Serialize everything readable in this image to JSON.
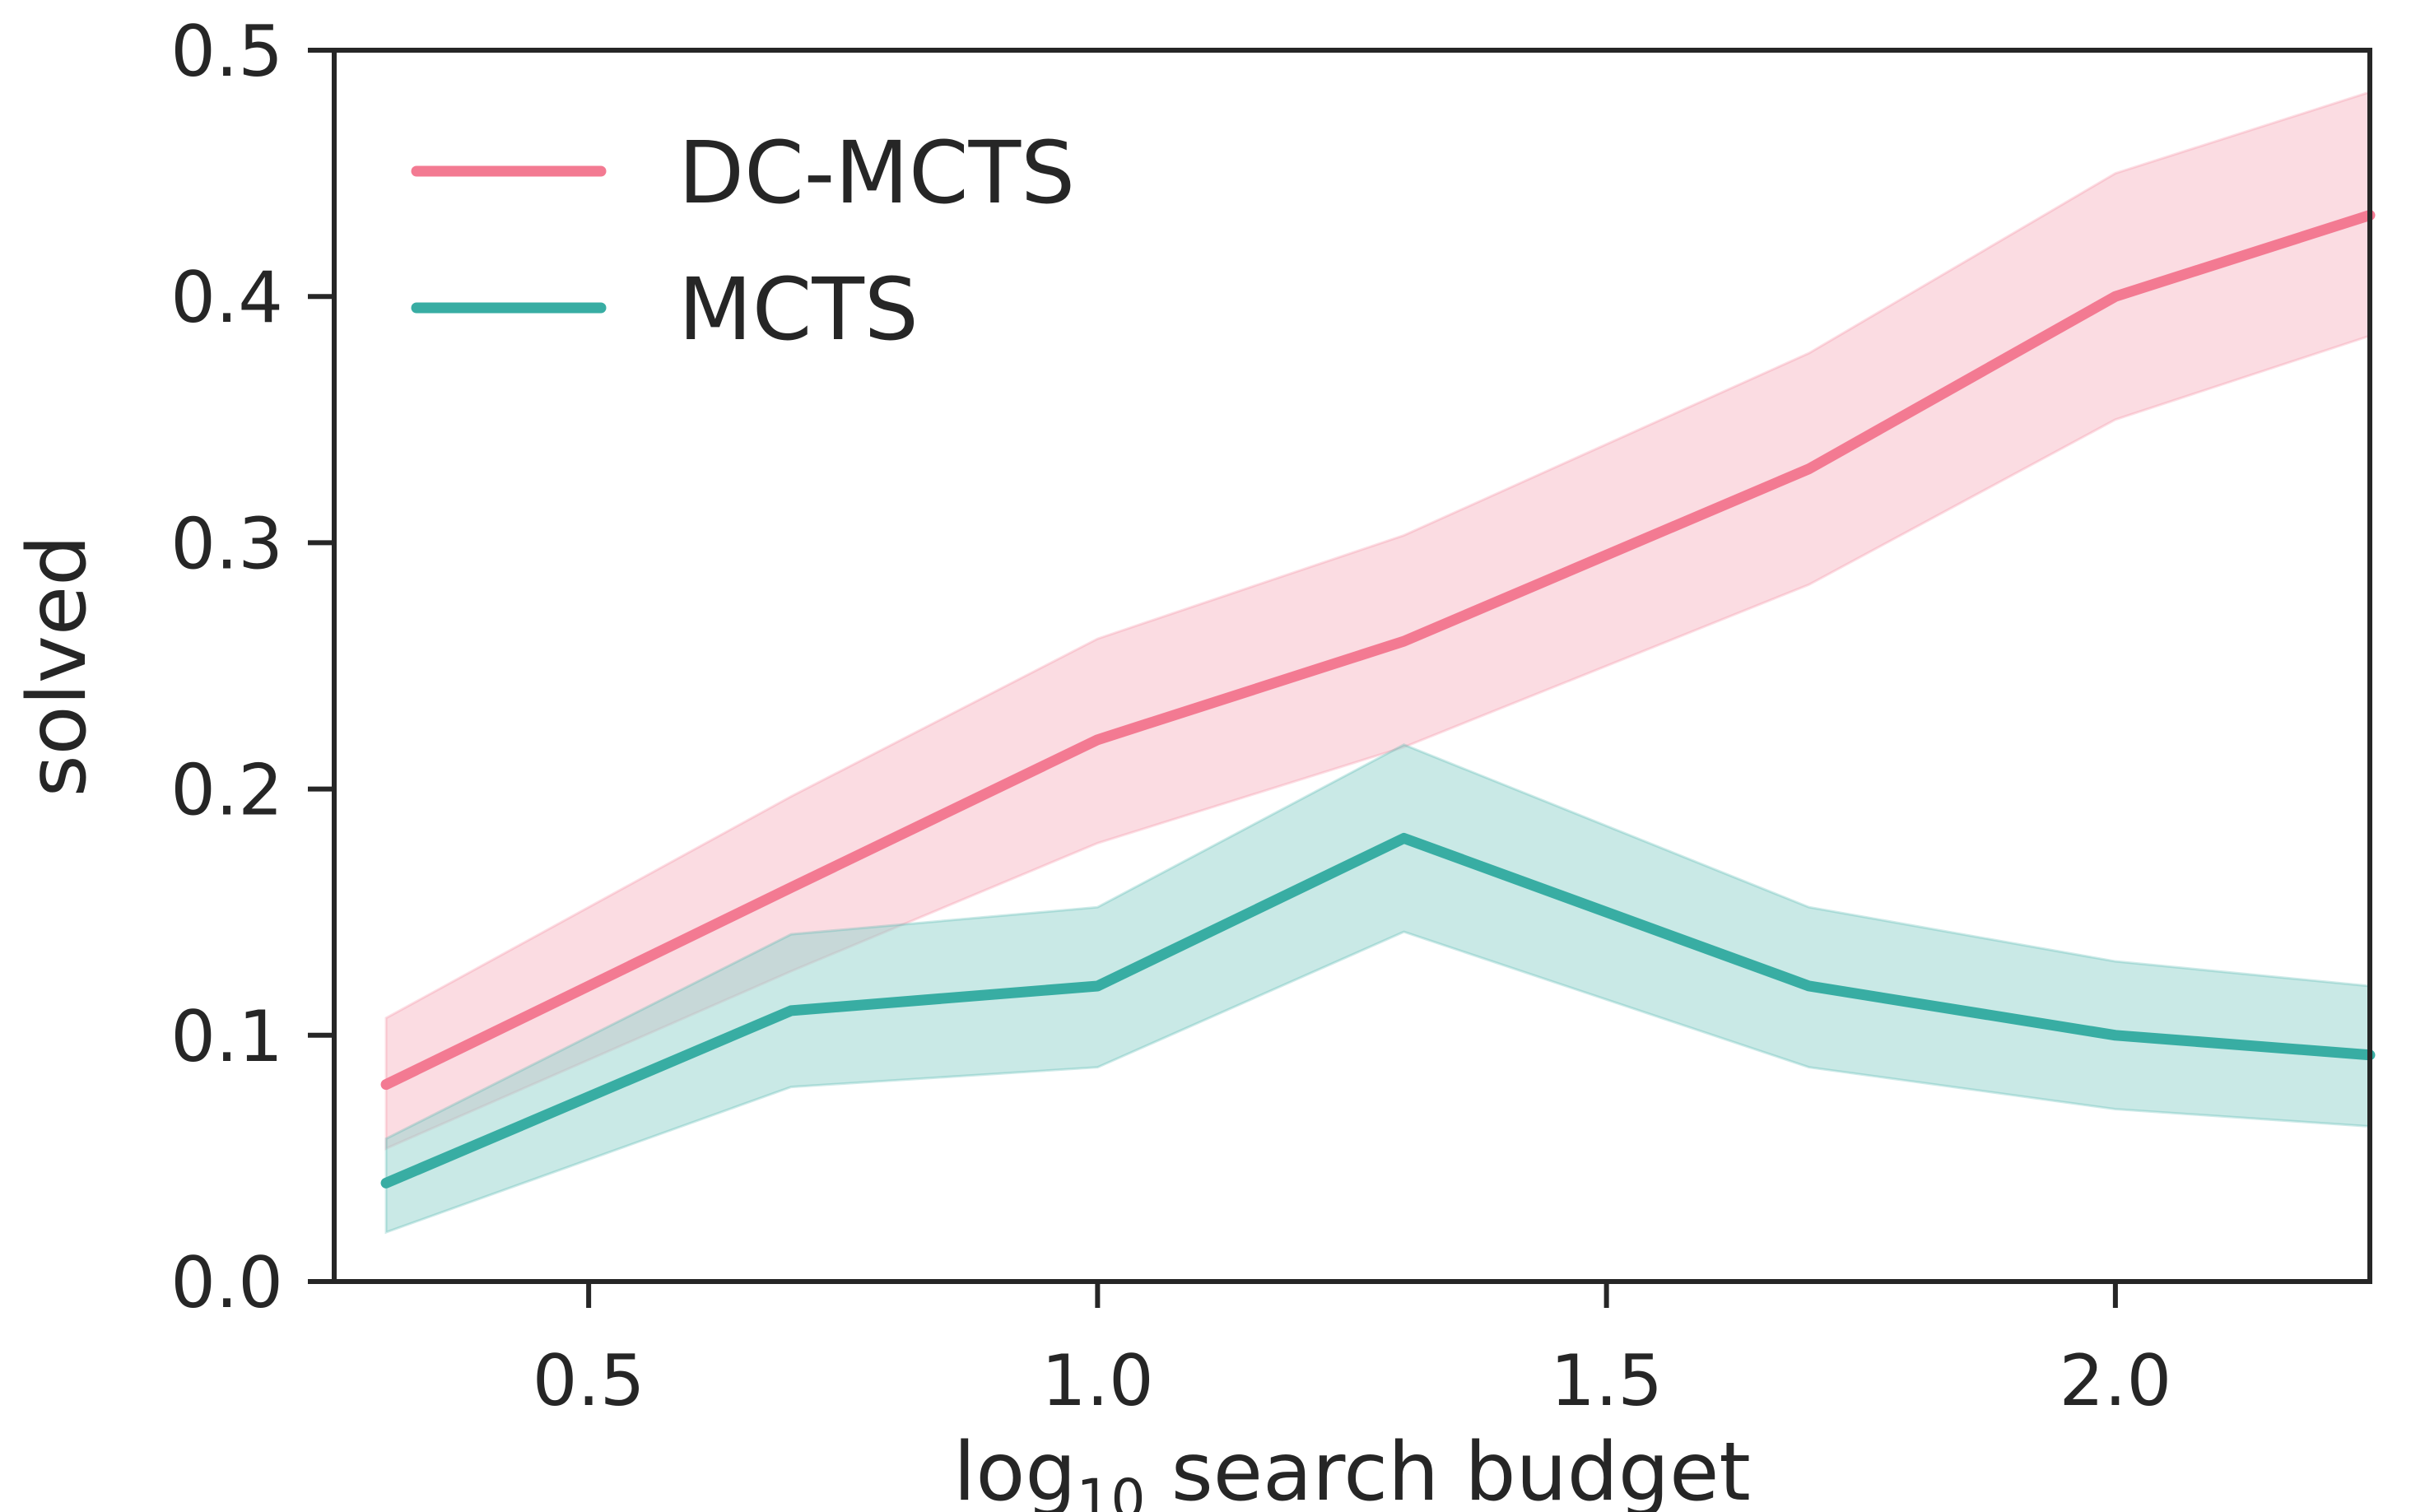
{
  "chart_data": {
    "type": "line",
    "title": "",
    "xlabel": "log",
    "xlabel_subscript": "10",
    "xlabel_rest": " search budget",
    "ylabel": "solved",
    "xlim": [
      0.25,
      2.25
    ],
    "ylim": [
      0.0,
      0.5
    ],
    "x_ticks": [
      0.5,
      1.0,
      1.5,
      2.0
    ],
    "x_tick_labels": [
      "0.5",
      "1.0",
      "1.5",
      "2.0"
    ],
    "y_ticks": [
      0.0,
      0.1,
      0.2,
      0.3,
      0.4,
      0.5
    ],
    "y_tick_labels": [
      "0.0",
      "0.1",
      "0.2",
      "0.3",
      "0.4",
      "0.5"
    ],
    "x": [
      0.301,
      0.699,
      1.0,
      1.301,
      1.699,
      2.0,
      2.25
    ],
    "legend_position": "top-left",
    "series": [
      {
        "name": "DC-MCTS",
        "color": "#f37a92",
        "band_color": "#f7b9c6",
        "values": [
          0.08,
          0.16,
          0.22,
          0.26,
          0.33,
          0.4,
          0.433
        ],
        "lower": [
          0.054,
          0.126,
          0.178,
          0.217,
          0.283,
          0.35,
          0.384
        ],
        "upper": [
          0.107,
          0.197,
          0.261,
          0.303,
          0.377,
          0.45,
          0.483
        ]
      },
      {
        "name": "MCTS",
        "color": "#38ada3",
        "band_color": "#93d4ce",
        "values": [
          0.04,
          0.11,
          0.12,
          0.18,
          0.12,
          0.1,
          0.092
        ],
        "lower": [
          0.02,
          0.079,
          0.087,
          0.142,
          0.087,
          0.07,
          0.063
        ],
        "upper": [
          0.058,
          0.141,
          0.152,
          0.218,
          0.152,
          0.13,
          0.12
        ]
      }
    ]
  }
}
